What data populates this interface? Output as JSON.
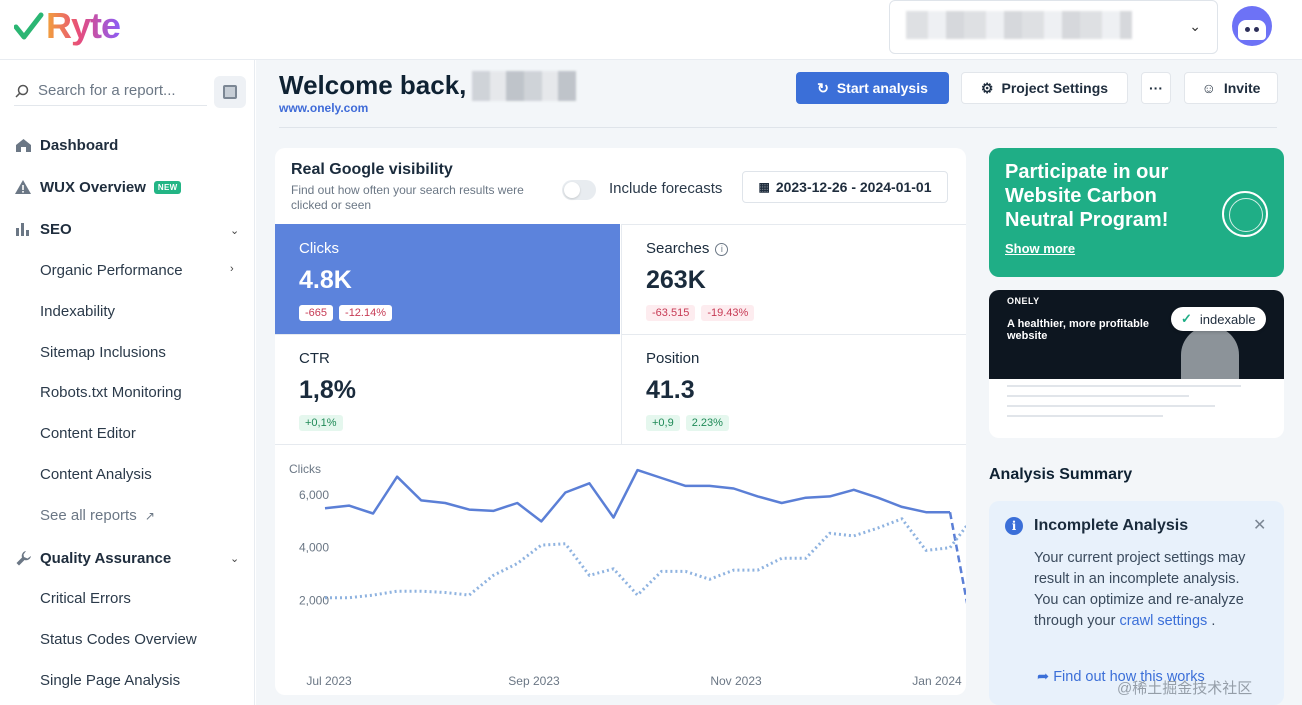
{
  "brand": {
    "logo_text": "Ryte"
  },
  "sidebar": {
    "search_placeholder": "Search for a report...",
    "items": [
      {
        "label": "Dashboard",
        "icon": "home-icon"
      },
      {
        "label": "WUX Overview",
        "icon": "warning-icon",
        "badge": "NEW"
      },
      {
        "label": "SEO",
        "icon": "bar-chart-icon"
      },
      {
        "label": "Organic Performance"
      },
      {
        "label": "Indexability"
      },
      {
        "label": "Sitemap Inclusions"
      },
      {
        "label": "Robots.txt Monitoring"
      },
      {
        "label": "Content Editor"
      },
      {
        "label": "Content Analysis"
      },
      {
        "label": "See all reports"
      },
      {
        "label": "Quality Assurance",
        "icon": "wrench-icon"
      },
      {
        "label": "Critical Errors"
      },
      {
        "label": "Status Codes Overview"
      },
      {
        "label": "Single Page Analysis"
      }
    ]
  },
  "header": {
    "welcome": "Welcome back,",
    "site": "www.onely.com",
    "start_analysis": "Start analysis",
    "project_settings": "Project Settings",
    "more": "···",
    "invite": "Invite"
  },
  "visibility": {
    "title": "Real Google visibility",
    "subtitle": "Find out how often your search results were clicked or seen",
    "forecast_label": "Include forecasts",
    "date_range": "2023-12-26 - 2024-01-01",
    "metrics": [
      {
        "label": "Clicks",
        "value": "4.8K",
        "deltas": [
          "-665",
          "-12.14%"
        ]
      },
      {
        "label": "Searches",
        "value": "263K",
        "deltas": [
          "-63.515",
          "-19.43%"
        ]
      },
      {
        "label": "CTR",
        "value": "1,8%",
        "deltas": [
          "+0,1%"
        ]
      },
      {
        "label": "Position",
        "value": "41.3",
        "deltas": [
          "+0,9",
          "2.23%"
        ]
      }
    ]
  },
  "chart_data": {
    "type": "line",
    "ylabel": "Clicks",
    "x_ticks": [
      "Jul 2023",
      "Sep 2023",
      "Nov 2023",
      "Jan 2024"
    ],
    "y_ticks": [
      "6,000",
      "4,000",
      "2,000"
    ],
    "ylim": [
      0,
      7600
    ],
    "grid": false,
    "series": [
      {
        "style": "solid",
        "color": "#5b7fd6",
        "values": [
          5500,
          5600,
          5300,
          6700,
          5800,
          5700,
          5450,
          5400,
          5700,
          5000,
          6100,
          6450,
          5150,
          6950,
          6650,
          6350,
          6350,
          6250,
          5950,
          5700,
          5900,
          5950,
          6200,
          5900,
          5550,
          5350,
          5350
        ]
      },
      {
        "style": "dashed",
        "color": "#5b7fd6",
        "start_index": 26,
        "values": [
          5350,
          500
        ]
      },
      {
        "style": "dotted",
        "color": "#8fb3e0",
        "values": [
          2100,
          2100,
          2200,
          2350,
          2350,
          2300,
          2200,
          2950,
          3400,
          4100,
          4150,
          2950,
          3200,
          2200,
          3100,
          3100,
          2800,
          3150,
          3150,
          3600,
          3600,
          4550,
          4450,
          4750,
          5100,
          3900,
          4000,
          5200
        ]
      }
    ]
  },
  "promo": {
    "title": "Participate in our Website Carbon Neutral Program!",
    "link": "Show more"
  },
  "thumb": {
    "brand": "ONELY",
    "headline": "A healthier, more profitable website",
    "badge": "indexable"
  },
  "summary": {
    "title": "Analysis Summary",
    "alert_title": "Incomplete Analysis",
    "alert_text": "Your current project settings may result in an incomplete analysis. You can optimize and re-analyze through your",
    "alert_link": "crawl settings",
    "alert_end": ".",
    "find_out": "Find out how this works"
  },
  "watermark": "@稀土掘金技术社区",
  "colors": {
    "primary": "#3b6fd8",
    "selected_metric": "#5c83dc",
    "promo_green": "#1fae86"
  }
}
